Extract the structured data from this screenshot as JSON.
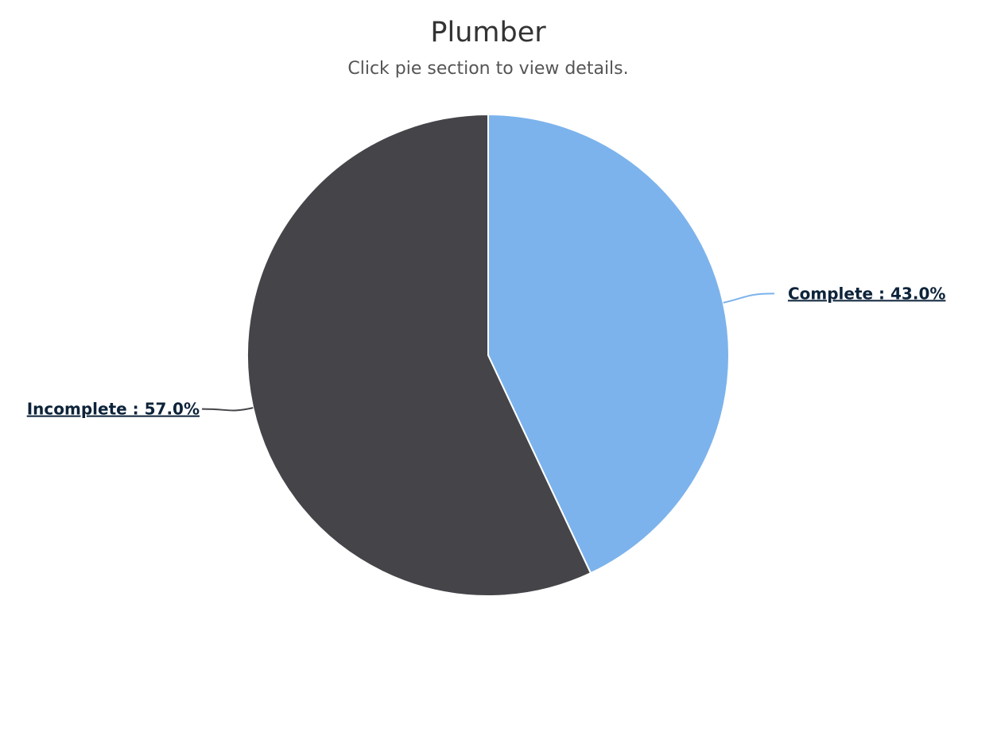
{
  "chart_data": {
    "type": "pie",
    "title": "Plumber",
    "subtitle": "Click pie section to view details.",
    "slices": [
      {
        "label": "Complete",
        "value": 43.0,
        "display": "Complete : 43.0%",
        "color": "#7cb3ec"
      },
      {
        "label": "Incomplete",
        "value": 57.0,
        "display": "Incomplete : 57.0%",
        "color": "#454449"
      }
    ],
    "start_angle": "top, clockwise",
    "legend": "none",
    "data_labels": "outside with connector lines"
  }
}
